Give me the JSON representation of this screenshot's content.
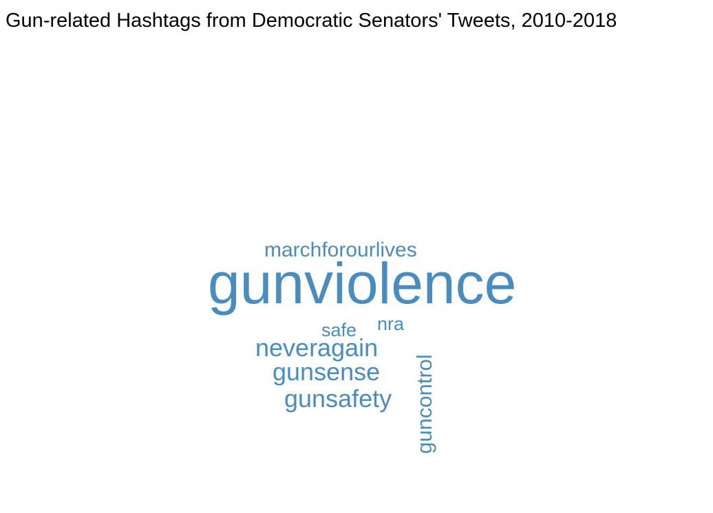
{
  "chart_data": {
    "type": "wordcloud",
    "title": "Gun-related Hashtags from Democratic Senators' Tweets, 2010-2018",
    "color": "#4a8cbd",
    "words": [
      {
        "text": "gunviolence",
        "weight": 100,
        "orientation": "horizontal"
      },
      {
        "text": "marchforourlives",
        "weight": 30,
        "orientation": "horizontal"
      },
      {
        "text": "neveragain",
        "weight": 36,
        "orientation": "horizontal"
      },
      {
        "text": "gunsense",
        "weight": 36,
        "orientation": "horizontal"
      },
      {
        "text": "gunsafety",
        "weight": 36,
        "orientation": "horizontal"
      },
      {
        "text": "guncontrol",
        "weight": 30,
        "orientation": "vertical"
      },
      {
        "text": "safe",
        "weight": 27,
        "orientation": "horizontal"
      },
      {
        "text": "nra",
        "weight": 27,
        "orientation": "horizontal"
      }
    ]
  }
}
